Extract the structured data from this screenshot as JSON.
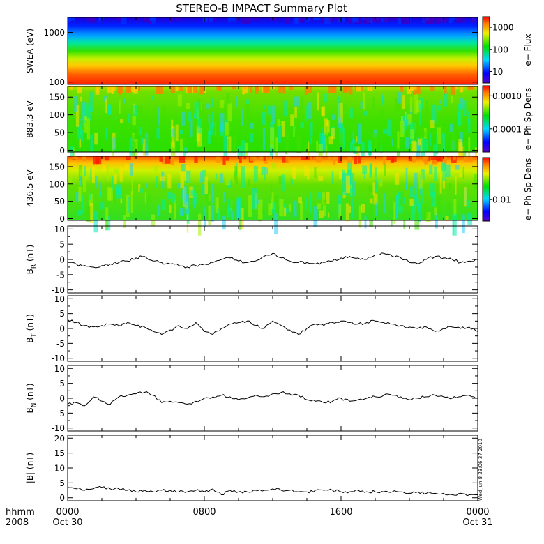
{
  "title": "STEREO-B IMPACT Summary Plot",
  "x_axis": {
    "row1": "hhmm",
    "row2": "2008",
    "ticks": [
      {
        "label": "0000",
        "sub": "Oct 30",
        "hour": 0
      },
      {
        "label": "0800",
        "sub": "",
        "hour": 8
      },
      {
        "label": "1600",
        "sub": "",
        "hour": 16
      },
      {
        "label": "0000",
        "sub": "Oct 31",
        "hour": 24
      }
    ],
    "range_hours": [
      0,
      24
    ]
  },
  "timestamp": "Wed Jun 8 23:06:37 2010",
  "chart_data": [
    {
      "type": "heatmap",
      "ylabel": "SWEA (eV)",
      "yscale": "log",
      "ylim": [
        90,
        2000
      ],
      "yticks": [
        {
          "v": 1000,
          "label": "1000"
        },
        {
          "v": 100,
          "label": "100"
        }
      ],
      "colorbar_label": "e− Flux",
      "colorbar_scale": "log",
      "colorbar_range": [
        3,
        3000
      ],
      "colorbar_ticks": [
        {
          "v": 1000,
          "label": "1000"
        },
        {
          "v": 100,
          "label": "100"
        },
        {
          "v": 10,
          "label": "10"
        }
      ]
    },
    {
      "type": "heatmap",
      "ylabel": "883.3 eV",
      "ylim": [
        -5,
        180
      ],
      "yticks": [
        {
          "v": 150,
          "label": "150"
        },
        {
          "v": 100,
          "label": "100"
        },
        {
          "v": 50,
          "label": "50"
        },
        {
          "v": 0,
          "label": "0"
        }
      ],
      "colorbar_label": "e− Ph Sp Dens",
      "colorbar_scale": "log",
      "colorbar_range": [
        2e-05,
        0.002
      ],
      "colorbar_ticks": [
        {
          "v": 0.001,
          "label": "0.0010"
        },
        {
          "v": 0.0001,
          "label": "0.0001"
        }
      ]
    },
    {
      "type": "heatmap",
      "ylabel": "436.5 eV",
      "ylim": [
        -5,
        180
      ],
      "yticks": [
        {
          "v": 150,
          "label": "150"
        },
        {
          "v": 100,
          "label": "100"
        },
        {
          "v": 50,
          "label": "50"
        },
        {
          "v": 0,
          "label": "0"
        }
      ],
      "colorbar_label": "e− Ph Sp Dens",
      "colorbar_scale": "log",
      "colorbar_range": [
        0.004,
        0.06
      ],
      "colorbar_ticks": [
        {
          "v": 0.01,
          "label": "0.01"
        }
      ]
    },
    {
      "type": "line",
      "ylabel": "B",
      "ylabel_sub": "R",
      "ylabel_unit": " (nT)",
      "ylim": [
        -11,
        11
      ],
      "yticks": [
        10,
        5,
        0,
        -5,
        -10
      ],
      "series": [
        {
          "x": [
            0,
            0.5,
            1,
            1.5,
            2,
            2.5,
            3,
            3.5,
            4,
            4.5,
            5,
            5.5,
            6,
            6.5,
            7,
            7.5,
            8,
            8.5,
            9,
            9.5,
            10,
            10.5,
            11,
            11.5,
            12,
            12.5,
            13,
            13.5,
            14,
            14.5,
            15,
            15.5,
            16,
            16.5,
            17,
            17.5,
            18,
            18.5,
            19,
            19.5,
            20,
            20.5,
            21,
            21.5,
            22,
            22.5,
            23,
            23.5,
            24
          ],
          "y": [
            -1,
            -1.5,
            -2,
            -2.5,
            -2,
            -1.5,
            -1,
            -0.5,
            0.5,
            1,
            -0.5,
            -1,
            -1.5,
            -2,
            -2.5,
            -2,
            -1.5,
            -1,
            0,
            0.5,
            -0.5,
            -1,
            -0.5,
            1,
            2,
            0.5,
            -0.5,
            -1,
            -1,
            -1.5,
            -1,
            -0.5,
            0.5,
            1,
            0.5,
            0,
            1.5,
            2,
            1,
            0.5,
            -1,
            -1.5,
            0,
            1,
            0.5,
            0,
            -1,
            -0.5,
            0
          ]
        }
      ]
    },
    {
      "type": "line",
      "ylabel": "B",
      "ylabel_sub": "T",
      "ylabel_unit": " (nT)",
      "ylim": [
        -11,
        11
      ],
      "yticks": [
        10,
        5,
        0,
        -5,
        -10
      ],
      "series": [
        {
          "x": [
            0,
            0.5,
            1,
            1.5,
            2,
            2.5,
            3,
            3.5,
            4,
            4.5,
            5,
            5.5,
            6,
            6.5,
            7,
            7.5,
            8,
            8.5,
            9,
            9.5,
            10,
            10.5,
            11,
            11.5,
            12,
            12.5,
            13,
            13.5,
            14,
            14.5,
            15,
            15.5,
            16,
            16.5,
            17,
            17.5,
            18,
            18.5,
            19,
            19.5,
            20,
            20.5,
            21,
            21.5,
            22,
            22.5,
            23,
            23.5,
            24
          ],
          "y": [
            3,
            2,
            1,
            0.5,
            1,
            1.5,
            1,
            2,
            1,
            0.5,
            -1,
            -2,
            -0.5,
            1,
            0,
            2,
            -1,
            -2,
            0,
            1.5,
            2,
            2.5,
            1,
            0,
            2.5,
            1,
            -0.5,
            -2,
            0,
            1.5,
            1,
            2,
            2.5,
            2,
            1.5,
            2,
            2.5,
            2,
            1.5,
            1,
            0.5,
            0,
            0.5,
            -1,
            0,
            0.5,
            0,
            0.5,
            -1
          ]
        }
      ]
    },
    {
      "type": "line",
      "ylabel": "B",
      "ylabel_sub": "N",
      "ylabel_unit": " (nT)",
      "ylim": [
        -11,
        11
      ],
      "yticks": [
        10,
        5,
        0,
        -5,
        -10
      ],
      "series": [
        {
          "x": [
            0,
            0.5,
            1,
            1.5,
            2,
            2.5,
            3,
            3.5,
            4,
            4.5,
            5,
            5.5,
            6,
            6.5,
            7,
            7.5,
            8,
            8.5,
            9,
            9.5,
            10,
            10.5,
            11,
            11.5,
            12,
            12.5,
            13,
            13.5,
            14,
            14.5,
            15,
            15.5,
            16,
            16.5,
            17,
            17.5,
            18,
            18.5,
            19,
            19.5,
            20,
            20.5,
            21,
            21.5,
            22,
            22.5,
            23,
            23.5,
            24
          ],
          "y": [
            -2,
            -1.5,
            -2.5,
            0.5,
            -1,
            -2,
            0.5,
            1,
            1.5,
            2,
            1,
            -1.5,
            -1,
            -1.5,
            -2,
            -1,
            0,
            0.5,
            1,
            0.5,
            -0.5,
            0,
            1,
            0.5,
            1.5,
            2,
            1.5,
            1,
            -0.5,
            -1,
            -1.5,
            -1,
            0,
            -1,
            -0.5,
            0,
            0.5,
            1,
            1,
            0.5,
            -0.5,
            0,
            0.5,
            1,
            0.5,
            0,
            0.5,
            1,
            0
          ]
        }
      ]
    },
    {
      "type": "line",
      "ylabel": "|B| (nT)",
      "ylim": [
        -1,
        21
      ],
      "yticks": [
        20,
        15,
        10,
        5,
        0
      ],
      "series": [
        {
          "x": [
            0,
            0.5,
            1,
            1.5,
            2,
            2.5,
            3,
            3.5,
            4,
            4.5,
            5,
            5.5,
            6,
            6.5,
            7,
            7.5,
            8,
            8.5,
            9,
            9.5,
            10,
            10.5,
            11,
            11.5,
            12,
            12.5,
            13,
            13.5,
            14,
            14.5,
            15,
            15.5,
            16,
            16.5,
            17,
            17.5,
            18,
            18.5,
            19,
            19.5,
            20,
            20.5,
            21,
            21.5,
            22,
            22.5,
            23,
            23.5,
            24
          ],
          "y": [
            3.5,
            3,
            2.5,
            3,
            3.5,
            3,
            3,
            2.5,
            2,
            2.5,
            2,
            2.5,
            2.5,
            2,
            2,
            2.5,
            2,
            3,
            1,
            2.5,
            2,
            2,
            2.5,
            2.5,
            3,
            2.5,
            2.5,
            2,
            2,
            2.5,
            2.5,
            2.5,
            2,
            2,
            2.5,
            2,
            2,
            2,
            2,
            2,
            1.5,
            2,
            1.5,
            1.5,
            1.5,
            1,
            1.5,
            1,
            1
          ]
        }
      ]
    }
  ]
}
